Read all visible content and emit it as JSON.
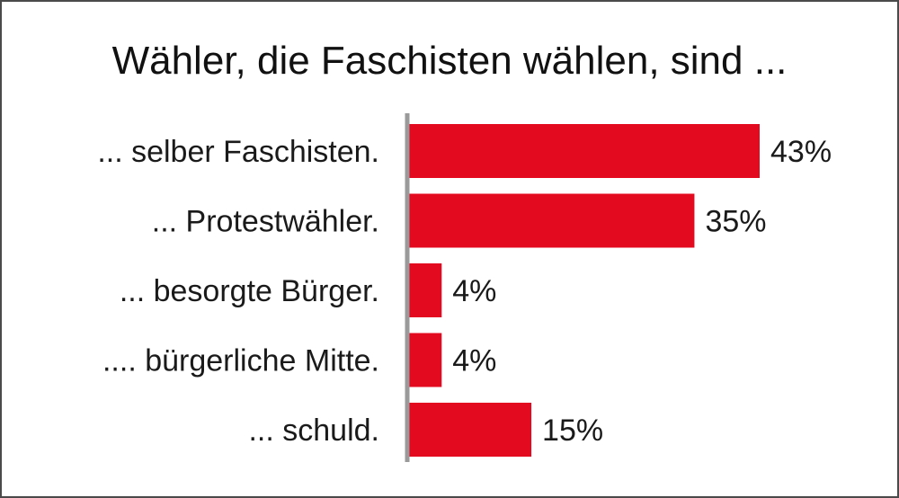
{
  "chart_data": {
    "type": "bar",
    "orientation": "horizontal",
    "title": "Wähler, die Faschisten wählen, sind ...",
    "categories": [
      "... selber Faschisten.",
      "... Protestwähler.",
      "... besorgte Bürger.",
      ".... bürgerliche Mitte.",
      "... schuld."
    ],
    "values": [
      43,
      35,
      4,
      4,
      15
    ],
    "value_labels": [
      "43%",
      "35%",
      "4%",
      "4%",
      "15%"
    ],
    "xlim": [
      0,
      43
    ],
    "grid": false,
    "legend": "none",
    "colors": {
      "bar": "#e30a1f",
      "axis": "#9a9a9a",
      "text": "#1a1a1a",
      "border": "#4a4a4a"
    }
  }
}
